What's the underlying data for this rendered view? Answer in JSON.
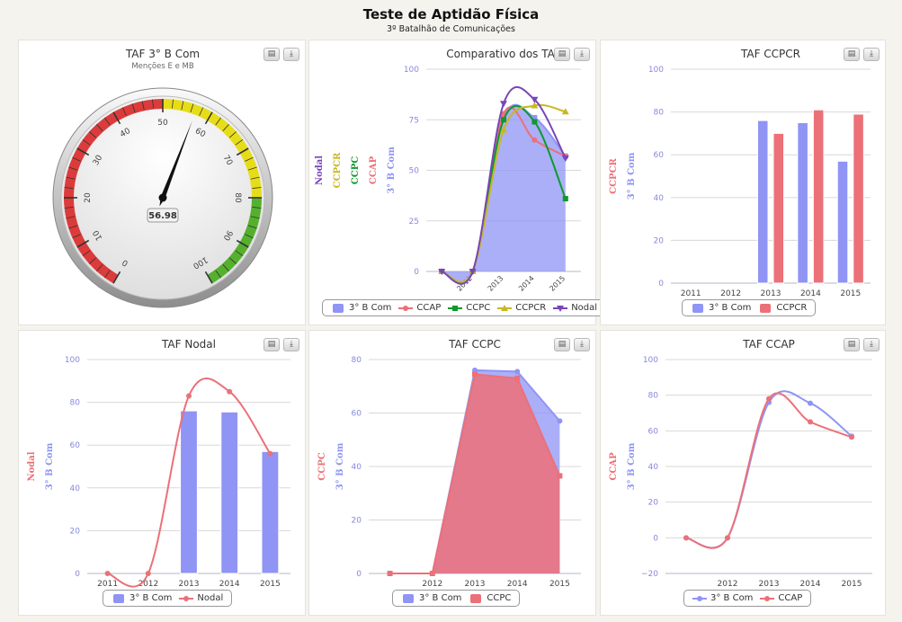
{
  "header": {
    "title": "Teste de Aptidão Física",
    "subtitle": "3º Batalhão de Comunicações"
  },
  "icons": {
    "print": "printer-icon",
    "export": "download-icon"
  },
  "colors": {
    "b3com": "#8f94f5",
    "ccap": "#ec7078",
    "ccpc": "#0c9a2c",
    "ccpcr": "#c9b81e",
    "nodal": "#7746b8",
    "gauge_red": "#dc3b3b",
    "gauge_yellow": "#e6dd18",
    "gauge_green": "#55b02e"
  },
  "chart_data": [
    {
      "id": "gauge",
      "type": "gauge",
      "title": "TAF 3° B Com",
      "subtitle": "Menções E e MB",
      "value": "56.98",
      "value_num": 56.98,
      "min": 0,
      "max": 100,
      "tick_labels": [
        "0",
        "10",
        "20",
        "30",
        "40",
        "50",
        "60",
        "70",
        "80",
        "90",
        "100"
      ],
      "bands": [
        {
          "from": 0,
          "to": 50,
          "color": "#dc3b3b"
        },
        {
          "from": 50,
          "to": 80,
          "color": "#e6dd18"
        },
        {
          "from": 80,
          "to": 100,
          "color": "#55b02e"
        }
      ]
    },
    {
      "id": "comparativo",
      "type": "line",
      "title": "Comparativo dos TAF",
      "categories": [
        "",
        "2012",
        "2013",
        "2014",
        "2015"
      ],
      "ylim": [
        0,
        100
      ],
      "y_ticks": [
        "0",
        "25",
        "50",
        "75",
        "100"
      ],
      "ylabels": [
        "Nodal",
        "CCPCR",
        "CCPC",
        "CCAP",
        "3° B Com"
      ],
      "series": [
        {
          "name": "3° B Com",
          "kind": "area",
          "color": "#8f94f5",
          "values": [
            0,
            0,
            76,
            76,
            57
          ]
        },
        {
          "name": "CCAP",
          "kind": "line",
          "color": "#ec7078",
          "values": [
            0,
            0,
            78,
            65,
            57
          ]
        },
        {
          "name": "CCPC",
          "kind": "line",
          "color": "#0c9a2c",
          "values": [
            0,
            0,
            75,
            74,
            36
          ]
        },
        {
          "name": "CCPCR",
          "kind": "line",
          "color": "#c9b81e",
          "values": [
            0,
            0,
            70,
            82,
            79
          ]
        },
        {
          "name": "Nodal",
          "kind": "line",
          "color": "#7746b8",
          "values": [
            0,
            0,
            83,
            85,
            56
          ]
        }
      ]
    },
    {
      "id": "ccpcr",
      "type": "bar",
      "title": "TAF CCPCR",
      "categories": [
        "2011",
        "2012",
        "2013",
        "2014",
        "2015"
      ],
      "ylim": [
        0,
        100
      ],
      "y_ticks": [
        "0",
        "20",
        "40",
        "60",
        "80",
        "100"
      ],
      "ylabels": [
        "CCPCR",
        "3° B Com"
      ],
      "series": [
        {
          "name": "3° B Com",
          "kind": "bar",
          "color": "#8f94f5",
          "values": [
            0,
            0,
            76,
            75,
            57
          ]
        },
        {
          "name": "CCPCR",
          "kind": "bar",
          "color": "#ec7078",
          "values": [
            0,
            0,
            70,
            81,
            79
          ]
        }
      ]
    },
    {
      "id": "nodal",
      "type": "bar",
      "title": "TAF Nodal",
      "categories": [
        "2011",
        "2012",
        "2013",
        "2014",
        "2015"
      ],
      "ylim": [
        0,
        100
      ],
      "y_ticks": [
        "0",
        "20",
        "40",
        "60",
        "80",
        "100"
      ],
      "ylabels": [
        "Nodal",
        "3° B Com"
      ],
      "series": [
        {
          "name": "3° B Com",
          "kind": "bar",
          "color": "#8f94f5",
          "values": [
            0,
            0,
            76,
            75.5,
            57
          ]
        },
        {
          "name": "Nodal",
          "kind": "line",
          "color": "#ec7078",
          "values": [
            0,
            0,
            83,
            85,
            56
          ]
        }
      ]
    },
    {
      "id": "ccpc",
      "type": "area",
      "title": "TAF CCPC",
      "categories": [
        "",
        "2012",
        "2013",
        "2014",
        "2015"
      ],
      "ylim": [
        0,
        80
      ],
      "y_ticks": [
        "0",
        "20",
        "40",
        "60",
        "80"
      ],
      "ylabels": [
        "CCPC",
        "3° B Com"
      ],
      "series": [
        {
          "name": "3° B Com",
          "kind": "area-straight",
          "color": "#8f94f5",
          "values": [
            0,
            0,
            76,
            75.5,
            57
          ]
        },
        {
          "name": "CCPC",
          "kind": "area-straight",
          "color": "#ec7078",
          "values": [
            0,
            0,
            74.5,
            73,
            36.5
          ]
        }
      ]
    },
    {
      "id": "ccap",
      "type": "line",
      "title": "TAF CCAP",
      "categories": [
        "",
        "2012",
        "2013",
        "2014",
        "2015"
      ],
      "ylim": [
        -20,
        100
      ],
      "y_ticks": [
        "−20",
        "0",
        "20",
        "40",
        "60",
        "80",
        "100"
      ],
      "ylabels": [
        "CCAP",
        "3° B Com"
      ],
      "series": [
        {
          "name": "3° B Com",
          "kind": "line",
          "color": "#8f94f5",
          "values": [
            0,
            0,
            76,
            75.5,
            57
          ]
        },
        {
          "name": "CCAP",
          "kind": "line",
          "color": "#ec7078",
          "values": [
            0,
            0,
            78,
            65,
            56.5
          ]
        }
      ]
    }
  ]
}
